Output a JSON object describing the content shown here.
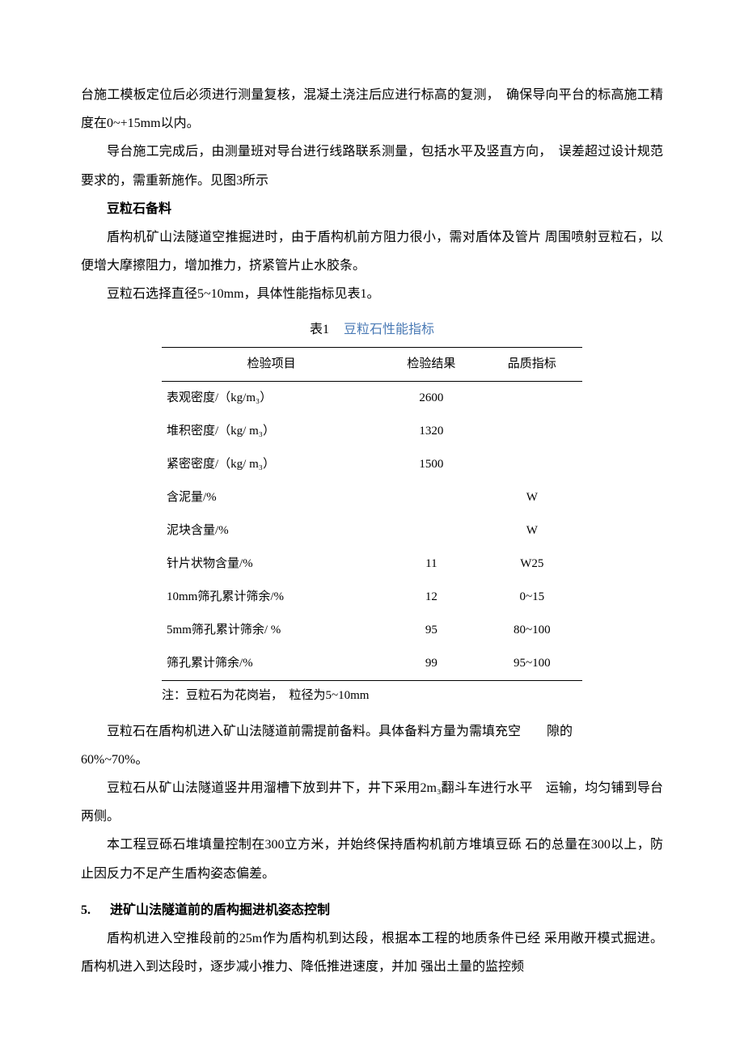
{
  "p1": "台施工模板定位后必须进行测量复核，混凝土浇注后应进行标高的复测，　确保导向平台的标高施工精度在0~+15mm以内。",
  "p2": "导台施工完成后，由测量班对导台进行线路联系测量，包括水平及竖直方向，　误差超过设计规范要求的，需重新施作。见图3所示",
  "h_bean": "豆粒石备料",
  "p3": "盾构机矿山法隧道空推掘进时，由于盾构机前方阻力很小，需对盾体及管片 周围喷射豆粒石，以便增大摩擦阻力，增加推力，挤紧管片止水胶条。",
  "p4": "豆粒石选择直径5~10mm，具体性能指标见表1。",
  "table1": {
    "num": "表1",
    "caption": "豆粒石性能指标",
    "columns": [
      "检验项目",
      "检验结果",
      "品质指标"
    ],
    "rows": [
      [
        "表观密度/（kg/m₃）",
        "2600",
        ""
      ],
      [
        "堆积密度/（kg/ m₃）",
        "1320",
        ""
      ],
      [
        "紧密密度/（kg/ m₃）",
        "1500",
        ""
      ],
      [
        "含泥量/%",
        "",
        "W"
      ],
      [
        "泥块含量/%",
        "",
        "W"
      ],
      [
        "针片状物含量/%",
        "11",
        "W25"
      ],
      [
        "10mm筛孔累计筛余/%",
        "12",
        "0~15"
      ],
      [
        "5mm筛孔累计筛余/ %",
        "95",
        "80~100"
      ],
      [
        "筛孔累计筛余/%",
        "99",
        "95~100"
      ]
    ],
    "note": "注：豆粒石为花岗岩，　粒径为5~10mm"
  },
  "p5a": "豆粒石在盾构机进入矿山法隧道前需提前备料。具体备料方量为需填充空　　隙的",
  "p5b": "60%~70%。",
  "p6": "豆粒石从矿山法隧道竖井用溜槽下放到井下，井下采用2m₃翻斗车进行水平　运输，均匀铺到导台两侧。",
  "p7": "本工程豆砾石堆填量控制在300立方米，并始终保持盾构机前方堆填豆砾 石的总量在300以上，防止因反力不足产生盾构姿态偏差。",
  "sec5_num": "5.",
  "sec5_title": "进矿山法隧道前的盾构掘进机姿态控制",
  "p8": "盾构机进入空推段前的25m作为盾构机到达段，根据本工程的地质条件已经 采用敞开模式掘进。盾构机进入到达段时，逐步减小推力、降低推进速度，并加 强出土量的监控频"
}
